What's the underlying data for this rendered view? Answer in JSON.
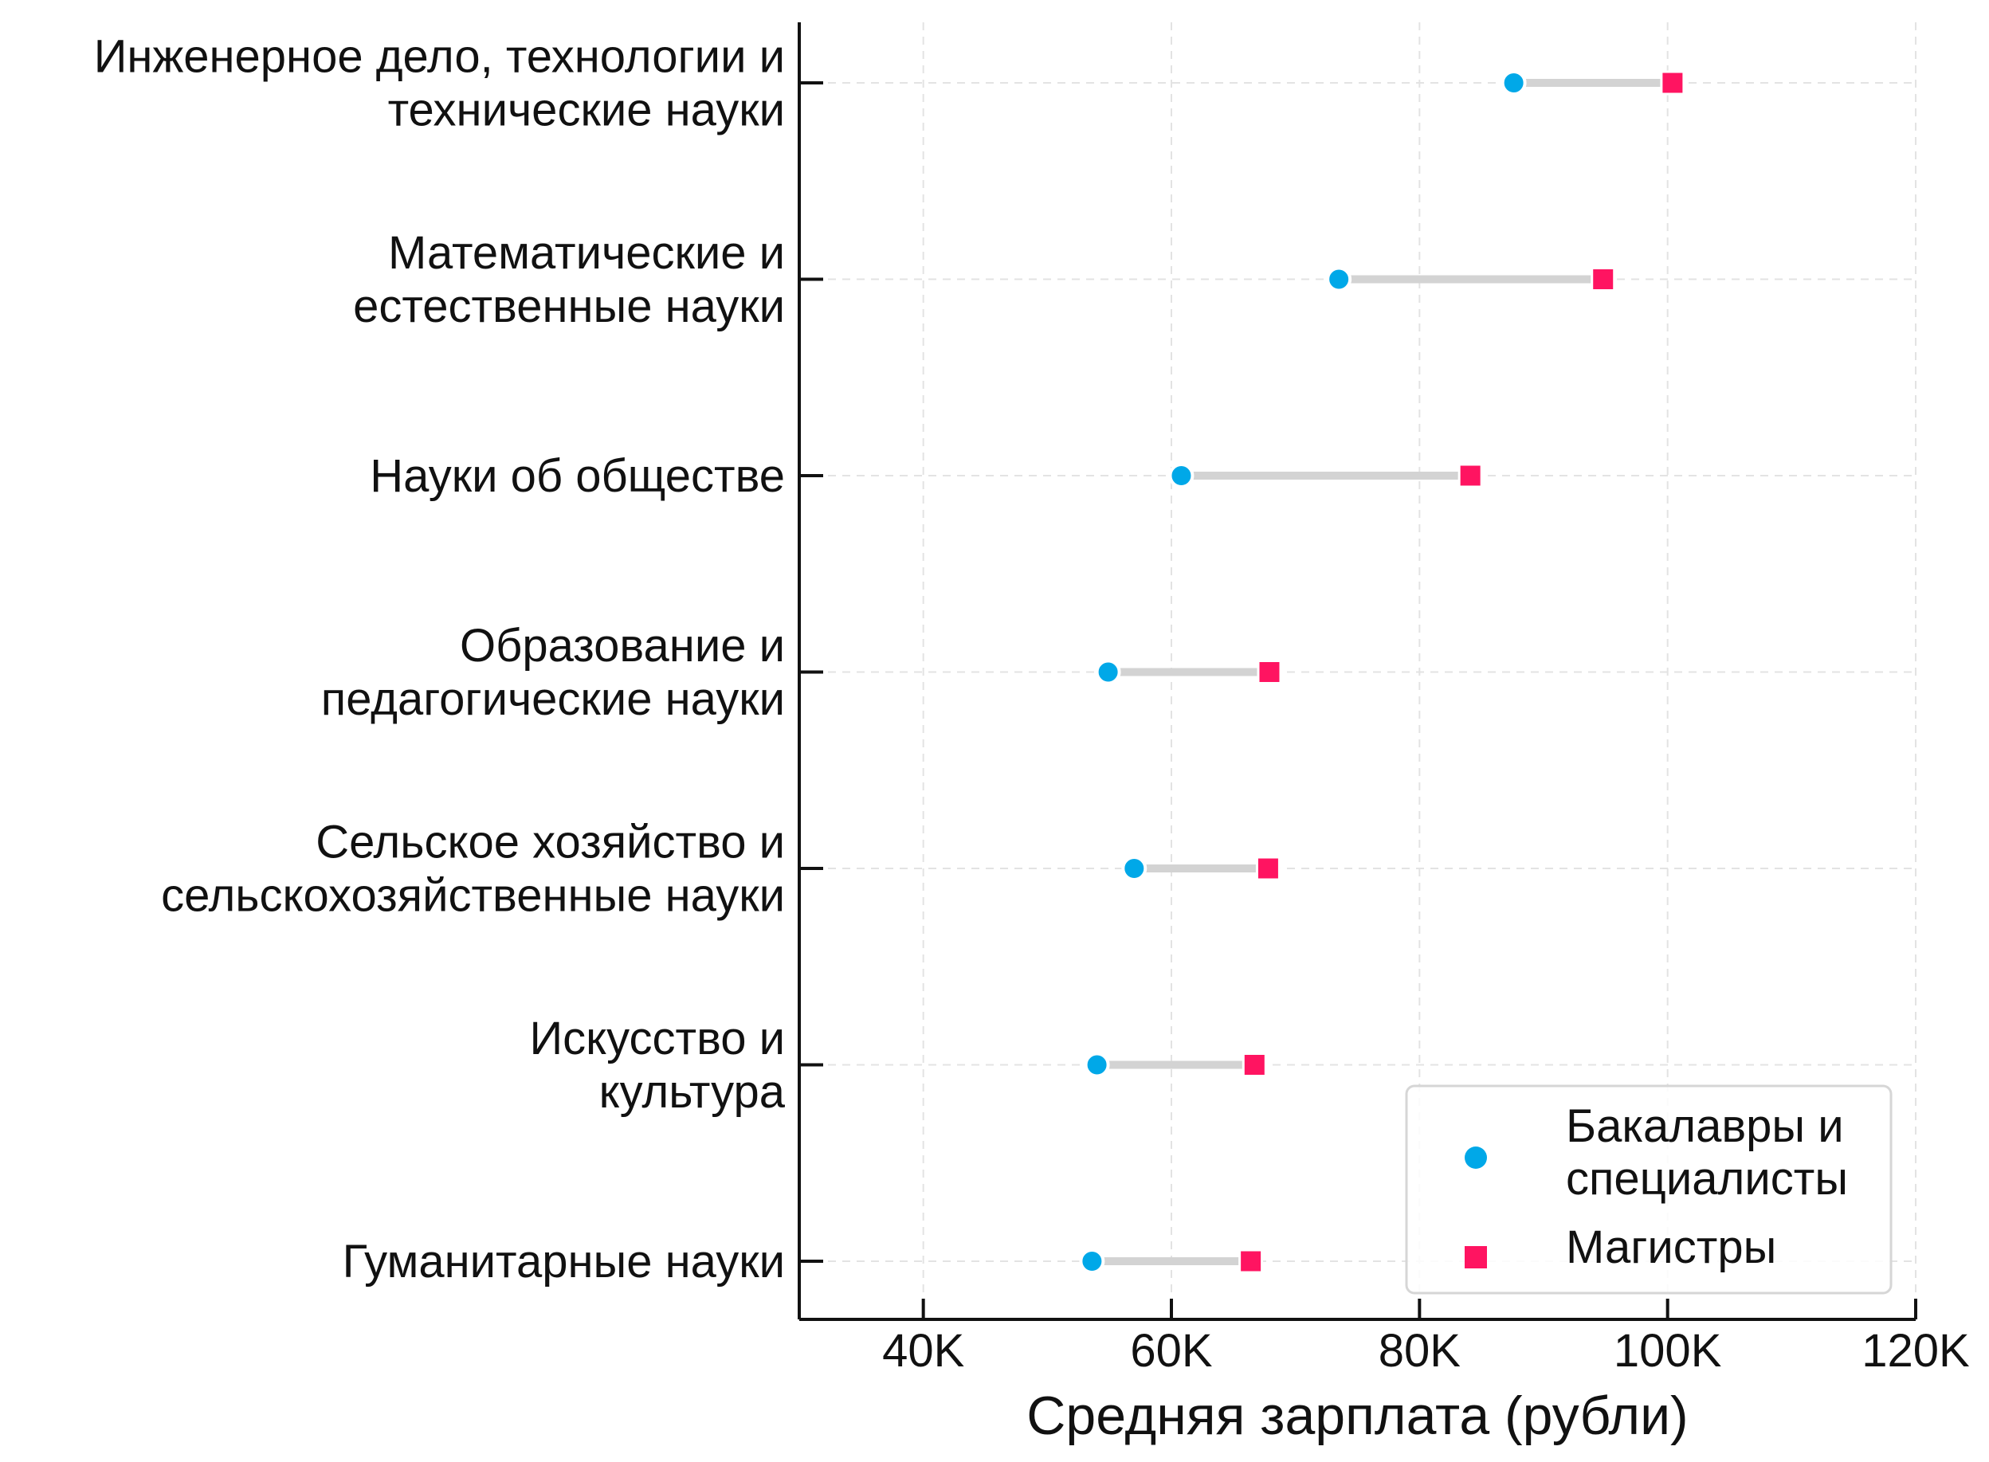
{
  "chart_data": {
    "type": "dumbbell",
    "xlabel": "Средняя зарплата (рубли)",
    "ylabel": "",
    "xlim": [
      30000,
      120000
    ],
    "x_ticks": [
      40000,
      60000,
      80000,
      100000,
      120000
    ],
    "x_tick_labels": [
      "40K",
      "60K",
      "80K",
      "100K",
      "120K"
    ],
    "grid": true,
    "legend_position": "bottom-right",
    "categories": [
      [
        "Инженерное дело, технологии и",
        "технические науки"
      ],
      [
        "Математические и",
        "естественные науки"
      ],
      [
        "Науки об обществе"
      ],
      [
        "Образование и",
        "педагогические науки"
      ],
      [
        "Сельское хозяйство и",
        "сельскохозяйственные науки"
      ],
      [
        "Искусство и",
        "культура"
      ],
      [
        "Гуманитарные науки"
      ]
    ],
    "series": [
      {
        "name": [
          "Бакалавры и",
          "специалисты"
        ],
        "marker": "circle",
        "color": "#00A8E8",
        "values": [
          87600,
          73500,
          60800,
          54900,
          57000,
          54000,
          53600
        ]
      },
      {
        "name": [
          "Магистры"
        ],
        "marker": "square",
        "color": "#FF1461",
        "values": [
          100400,
          94800,
          84100,
          67900,
          67800,
          66700,
          66400
        ]
      }
    ],
    "connector_color": "#D3D3D3"
  }
}
